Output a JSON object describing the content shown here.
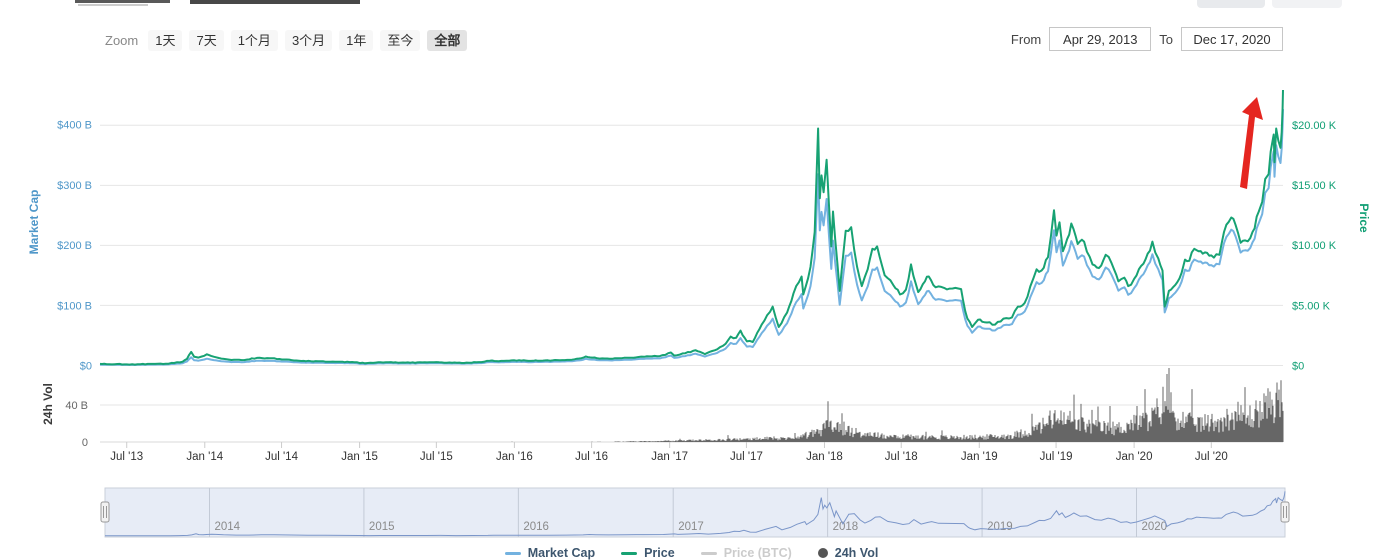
{
  "toolbar": {
    "zoom_label": "Zoom",
    "ranges": [
      {
        "label": "1天",
        "selected": false
      },
      {
        "label": "7天",
        "selected": false
      },
      {
        "label": "1个月",
        "selected": false
      },
      {
        "label": "3个月",
        "selected": false
      },
      {
        "label": "1年",
        "selected": false
      },
      {
        "label": "至今",
        "selected": false
      },
      {
        "label": "全部",
        "selected": true
      }
    ],
    "from_label": "From",
    "from_value": "Apr 29, 2013",
    "to_label": "To",
    "to_value": "Dec 17, 2020"
  },
  "legend": [
    {
      "label": "Market Cap",
      "color": "#73b2e0",
      "type": "line",
      "enabled": true
    },
    {
      "label": "Price",
      "color": "#17a273",
      "type": "line",
      "enabled": true
    },
    {
      "label": "Price (BTC)",
      "color": "#cccccc",
      "type": "line",
      "enabled": false
    },
    {
      "label": "24h Vol",
      "color": "#555555",
      "type": "circle",
      "enabled": true
    }
  ],
  "annotation": {
    "name": "upward-trend-arrow",
    "color": "#e52620"
  },
  "colors": {
    "price_line": "#17a273",
    "market_cap_line": "#73b2e0",
    "price_axis_text": "#0f9e73",
    "market_cap_axis_text": "#4f97c9",
    "volume_bars": "#666666",
    "volume_axis_text": "#666666",
    "x_axis_text": "#333333",
    "grid": "#e6e6e6",
    "navigator_bg": "#e7ecf6",
    "navigator_line": "#7b96c9",
    "navigator_year_text": "#8a8a8a"
  },
  "chart_data": {
    "type": "line",
    "title": "",
    "x_range": {
      "from": "2013-04-29",
      "to": "2020-12-17",
      "total_days": 2789
    },
    "y_left": {
      "title": "Market Cap",
      "ticks": [
        [
          400,
          "$400 B"
        ],
        [
          300,
          "$300 B"
        ],
        [
          200,
          "$200 B"
        ],
        [
          100,
          "$100 B"
        ],
        [
          0,
          "$0"
        ]
      ],
      "unit": "USD billions"
    },
    "y_right": {
      "title": "Price",
      "ticks": [
        [
          20,
          "$20.00 K"
        ],
        [
          15,
          "$15.00 K"
        ],
        [
          10,
          "$10.00 K"
        ],
        [
          5,
          "$5.00 K"
        ],
        [
          0,
          "$0"
        ]
      ],
      "unit": "USD thousands"
    },
    "y_volume": {
      "title": "24h Vol",
      "ticks": [
        [
          40,
          "40 B"
        ],
        [
          0,
          "0"
        ]
      ],
      "unit": "USD billions"
    },
    "x_ticks": [
      [
        63,
        "Jul '13"
      ],
      [
        247,
        "Jan '14"
      ],
      [
        428,
        "Jul '14"
      ],
      [
        612,
        "Jan '15"
      ],
      [
        793,
        "Jul '15"
      ],
      [
        977,
        "Jan '16"
      ],
      [
        1159,
        "Jul '16"
      ],
      [
        1343,
        "Jan '17"
      ],
      [
        1524,
        "Jul '17"
      ],
      [
        1708,
        "Jan '18"
      ],
      [
        1889,
        "Jul '18"
      ],
      [
        2073,
        "Jan '19"
      ],
      [
        2254,
        "Jul '19"
      ],
      [
        2438,
        "Jan '20"
      ],
      [
        2620,
        "Jul '20"
      ]
    ],
    "navigator_years": [
      [
        247,
        "2014"
      ],
      [
        612,
        "2015"
      ],
      [
        977,
        "2016"
      ],
      [
        1343,
        "2017"
      ],
      [
        1708,
        "2018"
      ],
      [
        2073,
        "2019"
      ],
      [
        2438,
        "2020"
      ]
    ],
    "series": [
      {
        "name": "Price",
        "axis": "right",
        "unit": "USD thousands",
        "color": "#17a273",
        "points": [
          [
            0,
            0.135
          ],
          [
            15,
            0.12
          ],
          [
            35,
            0.11
          ],
          [
            63,
            0.09
          ],
          [
            95,
            0.105
          ],
          [
            130,
            0.13
          ],
          [
            155,
            0.14
          ],
          [
            175,
            0.21
          ],
          [
            195,
            0.32
          ],
          [
            205,
            0.55
          ],
          [
            215,
            1.13
          ],
          [
            222,
            0.72
          ],
          [
            232,
            0.66
          ],
          [
            240,
            0.75
          ],
          [
            252,
            0.93
          ],
          [
            262,
            0.8
          ],
          [
            280,
            0.62
          ],
          [
            310,
            0.46
          ],
          [
            340,
            0.45
          ],
          [
            370,
            0.63
          ],
          [
            400,
            0.6
          ],
          [
            440,
            0.5
          ],
          [
            480,
            0.38
          ],
          [
            520,
            0.35
          ],
          [
            560,
            0.32
          ],
          [
            600,
            0.27
          ],
          [
            625,
            0.18
          ],
          [
            650,
            0.24
          ],
          [
            680,
            0.27
          ],
          [
            720,
            0.24
          ],
          [
            760,
            0.26
          ],
          [
            793,
            0.285
          ],
          [
            830,
            0.23
          ],
          [
            870,
            0.235
          ],
          [
            905,
            0.31
          ],
          [
            919,
            0.4
          ],
          [
            940,
            0.36
          ],
          [
            977,
            0.43
          ],
          [
            1010,
            0.38
          ],
          [
            1050,
            0.42
          ],
          [
            1090,
            0.45
          ],
          [
            1130,
            0.58
          ],
          [
            1145,
            0.75
          ],
          [
            1160,
            0.66
          ],
          [
            1190,
            0.58
          ],
          [
            1230,
            0.61
          ],
          [
            1270,
            0.71
          ],
          [
            1320,
            0.78
          ],
          [
            1346,
            1.08
          ],
          [
            1354,
            0.82
          ],
          [
            1380,
            1.02
          ],
          [
            1404,
            1.27
          ],
          [
            1426,
            0.95
          ],
          [
            1455,
            1.35
          ],
          [
            1475,
            1.8
          ],
          [
            1487,
            2.4
          ],
          [
            1500,
            2.3
          ],
          [
            1510,
            2.9
          ],
          [
            1525,
            2.0
          ],
          [
            1539,
            1.95
          ],
          [
            1560,
            3.4
          ],
          [
            1586,
            4.9
          ],
          [
            1600,
            3.2
          ],
          [
            1620,
            4.4
          ],
          [
            1635,
            6.0
          ],
          [
            1654,
            7.4
          ],
          [
            1658,
            5.9
          ],
          [
            1675,
            8.2
          ],
          [
            1685,
            11.1
          ],
          [
            1693,
            19.7
          ],
          [
            1697,
            13.9
          ],
          [
            1701,
            15.8
          ],
          [
            1706,
            14.4
          ],
          [
            1713,
            17.1
          ],
          [
            1724,
            9.9
          ],
          [
            1728,
            12.8
          ],
          [
            1744,
            6.2
          ],
          [
            1758,
            11.2
          ],
          [
            1771,
            11.5
          ],
          [
            1785,
            8.2
          ],
          [
            1796,
            6.6
          ],
          [
            1810,
            8.0
          ],
          [
            1821,
            9.7
          ],
          [
            1832,
            9.9
          ],
          [
            1850,
            7.5
          ],
          [
            1870,
            6.7
          ],
          [
            1886,
            5.9
          ],
          [
            1900,
            6.3
          ],
          [
            1912,
            8.4
          ],
          [
            1929,
            6.1
          ],
          [
            1945,
            7.0
          ],
          [
            1954,
            7.4
          ],
          [
            1970,
            6.5
          ],
          [
            1990,
            6.45
          ],
          [
            2010,
            6.4
          ],
          [
            2030,
            6.35
          ],
          [
            2040,
            4.5
          ],
          [
            2045,
            3.9
          ],
          [
            2056,
            3.2
          ],
          [
            2070,
            3.8
          ],
          [
            2085,
            3.6
          ],
          [
            2110,
            3.4
          ],
          [
            2130,
            3.9
          ],
          [
            2150,
            4.0
          ],
          [
            2164,
            4.9
          ],
          [
            2180,
            5.2
          ],
          [
            2200,
            7.2
          ],
          [
            2208,
            8.0
          ],
          [
            2220,
            7.9
          ],
          [
            2235,
            9.0
          ],
          [
            2249,
            12.9
          ],
          [
            2255,
            10.8
          ],
          [
            2262,
            11.9
          ],
          [
            2270,
            9.5
          ],
          [
            2280,
            10.5
          ],
          [
            2290,
            11.8
          ],
          [
            2305,
            10.1
          ],
          [
            2320,
            10.3
          ],
          [
            2340,
            8.4
          ],
          [
            2355,
            8.1
          ],
          [
            2371,
            9.2
          ],
          [
            2385,
            8.5
          ],
          [
            2401,
            7.0
          ],
          [
            2415,
            7.3
          ],
          [
            2424,
            6.6
          ],
          [
            2438,
            7.2
          ],
          [
            2455,
            8.3
          ],
          [
            2470,
            9.3
          ],
          [
            2481,
            10.3
          ],
          [
            2495,
            8.9
          ],
          [
            2505,
            7.9
          ],
          [
            2510,
            4.9
          ],
          [
            2520,
            6.2
          ],
          [
            2535,
            6.7
          ],
          [
            2550,
            7.7
          ],
          [
            2558,
            8.8
          ],
          [
            2568,
            8.7
          ],
          [
            2580,
            9.7
          ],
          [
            2590,
            9.5
          ],
          [
            2605,
            9.4
          ],
          [
            2620,
            9.15
          ],
          [
            2632,
            9.25
          ],
          [
            2639,
            9.2
          ],
          [
            2650,
            11.1
          ],
          [
            2667,
            12.3
          ],
          [
            2677,
            11.7
          ],
          [
            2689,
            10.2
          ],
          [
            2700,
            10.4
          ],
          [
            2712,
            10.6
          ],
          [
            2722,
            11.4
          ],
          [
            2732,
            12.8
          ],
          [
            2740,
            13.6
          ],
          [
            2747,
            15.5
          ],
          [
            2755,
            15.9
          ],
          [
            2760,
            17.8
          ],
          [
            2767,
            19.2
          ],
          [
            2769,
            16.9
          ],
          [
            2773,
            19.7
          ],
          [
            2778,
            18.7
          ],
          [
            2783,
            18.1
          ],
          [
            2786,
            19.4
          ],
          [
            2788,
            21.4
          ],
          [
            2789,
            22.9
          ]
        ]
      },
      {
        "name": "Market Cap",
        "axis": "left",
        "unit": "USD billions",
        "color": "#73b2e0",
        "derivation": "price_thousands × circulating_supply_millions; supply grows ≈11.1M (2013) → 18.6M (2020)"
      },
      {
        "name": "24h Vol",
        "axis": "volume",
        "unit": "USD billions",
        "color": "#666666",
        "envelope_points": [
          [
            0,
            0.06
          ],
          [
            600,
            0.08
          ],
          [
            977,
            0.15
          ],
          [
            1200,
            0.3
          ],
          [
            1343,
            1.2
          ],
          [
            1450,
            2.5
          ],
          [
            1550,
            3.5
          ],
          [
            1650,
            5
          ],
          [
            1700,
            13
          ],
          [
            1720,
            20
          ],
          [
            1760,
            14
          ],
          [
            1800,
            8
          ],
          [
            1900,
            6
          ],
          [
            2000,
            5
          ],
          [
            2085,
            5.5
          ],
          [
            2150,
            7
          ],
          [
            2208,
            14
          ],
          [
            2250,
            26
          ],
          [
            2300,
            20
          ],
          [
            2350,
            16
          ],
          [
            2400,
            15
          ],
          [
            2438,
            20
          ],
          [
            2480,
            26
          ],
          [
            2505,
            40
          ],
          [
            2515,
            55
          ],
          [
            2530,
            30
          ],
          [
            2560,
            22
          ],
          [
            2600,
            20
          ],
          [
            2650,
            24
          ],
          [
            2680,
            30
          ],
          [
            2700,
            26
          ],
          [
            2720,
            30
          ],
          [
            2750,
            38
          ],
          [
            2770,
            45
          ],
          [
            2789,
            48
          ]
        ]
      },
      {
        "name": "Price (BTC)",
        "hidden": true
      }
    ]
  }
}
